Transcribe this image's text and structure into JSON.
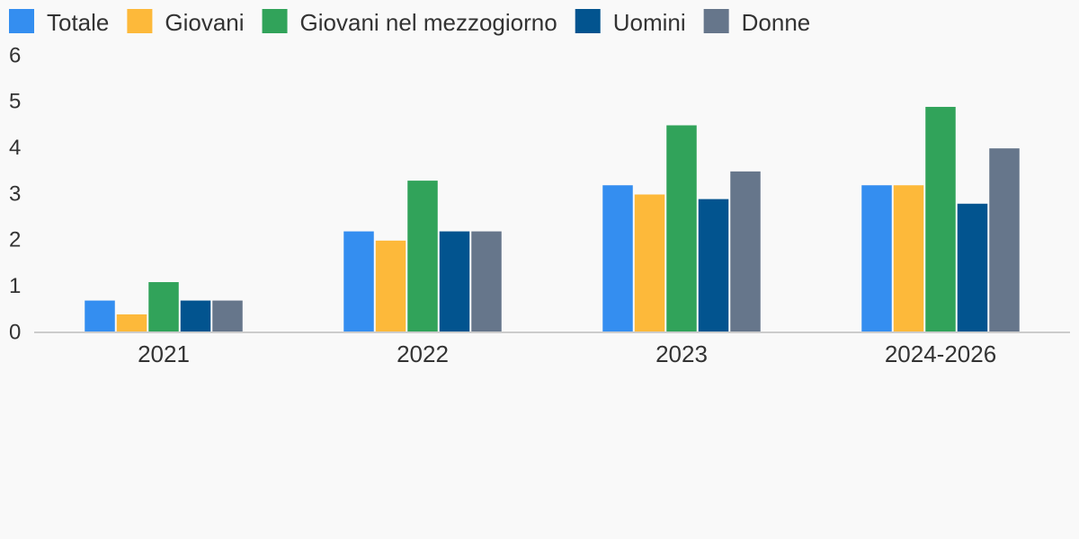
{
  "chart_data": {
    "type": "bar",
    "categories": [
      "2021",
      "2022",
      "2023",
      "2024-2026"
    ],
    "series": [
      {
        "name": "Totale",
        "color": "#348ef0",
        "values": [
          0.7,
          2.2,
          3.2,
          3.2
        ]
      },
      {
        "name": "Giovani",
        "color": "#fdb93a",
        "values": [
          0.4,
          2.0,
          3.0,
          3.2
        ]
      },
      {
        "name": "Giovani nel mezzogiorno",
        "color": "#31a35a",
        "values": [
          1.1,
          3.3,
          4.5,
          4.9
        ]
      },
      {
        "name": "Uomini",
        "color": "#02548f",
        "values": [
          0.7,
          2.2,
          2.9,
          2.8
        ]
      },
      {
        "name": "Donne",
        "color": "#66768b",
        "values": [
          0.7,
          2.2,
          3.5,
          4.0
        ]
      }
    ],
    "ylim": [
      0,
      6
    ],
    "yticks": [
      0,
      1,
      2,
      3,
      4,
      5,
      6
    ],
    "grid": false,
    "legend": "top"
  }
}
